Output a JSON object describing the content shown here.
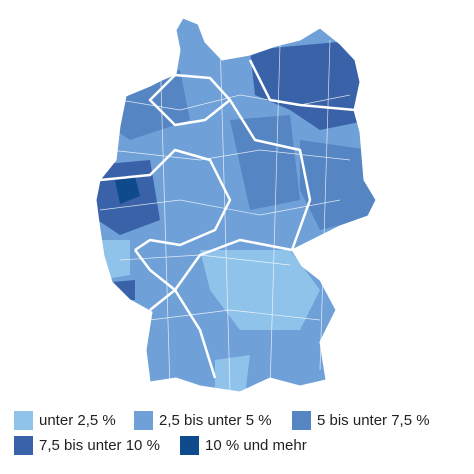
{
  "legend": {
    "items": [
      {
        "label": "unter 2,5 %",
        "color": "#8fc3ea"
      },
      {
        "label": "2,5 bis unter 5 %",
        "color": "#6fa1d8"
      },
      {
        "label": "5 bis unter 7,5 %",
        "color": "#5585c3"
      },
      {
        "label": "7,5 bis unter 10 %",
        "color": "#3a62a8"
      },
      {
        "label": "10 % und mehr",
        "color": "#0f4a8d"
      }
    ]
  }
}
